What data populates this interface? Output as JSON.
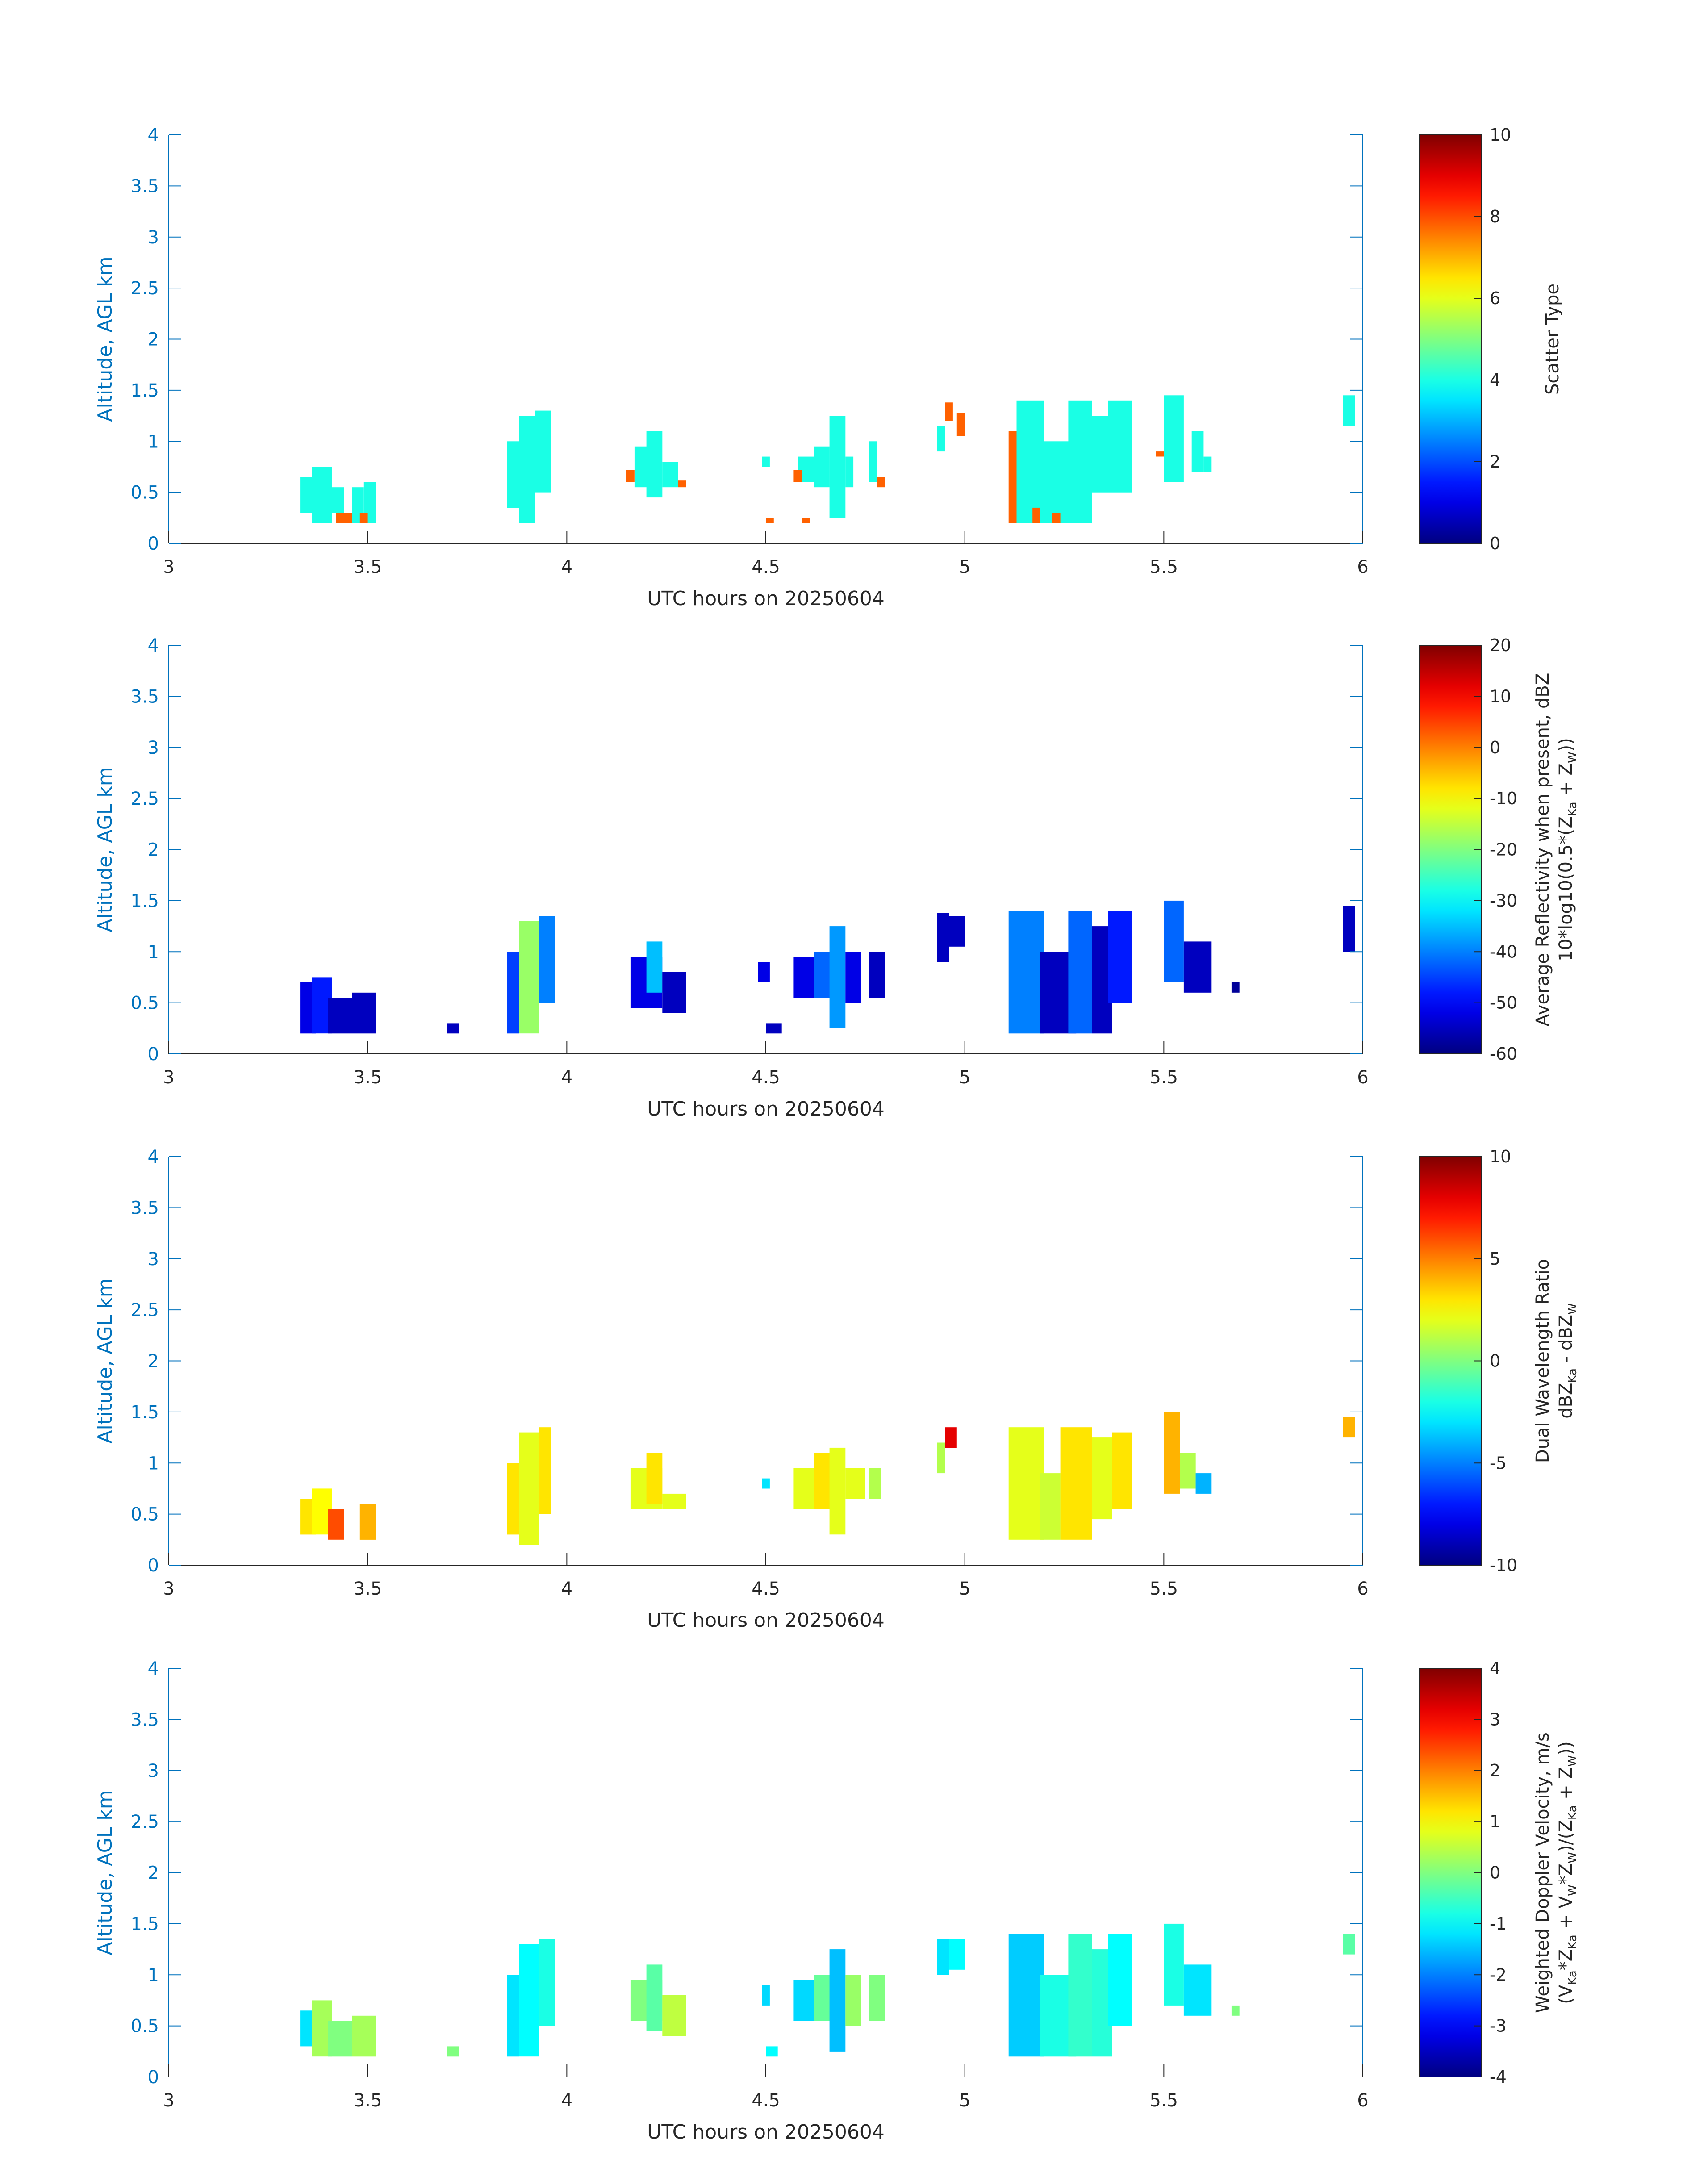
{
  "figure": {
    "date_label": "UTC hours on 20250604",
    "ylabel": "Altitude, AGL km",
    "xlim": [
      3,
      6
    ],
    "ylim": [
      0,
      4
    ],
    "x_ticks": [
      "3",
      "3.5",
      "4",
      "4.5",
      "5",
      "5.5",
      "6"
    ],
    "y_ticks": [
      "0",
      "0.5",
      "1",
      "1.5",
      "2",
      "2.5",
      "3",
      "3.5",
      "4"
    ],
    "axis_color": "#0072BD"
  },
  "chart_data": [
    {
      "type": "heatmap",
      "title": "",
      "xlabel": "UTC hours on 20250604",
      "ylabel": "Altitude, AGL km",
      "xlim": [
        3,
        6
      ],
      "ylim": [
        0,
        4
      ],
      "colorbar": {
        "title_lines": [
          "Scatter Type"
        ],
        "range": [
          0,
          10
        ],
        "ticks": [
          "0",
          "2",
          "4",
          "6",
          "8",
          "10"
        ]
      },
      "cells_note": "approximate patches [x0, x1, y0, y1, value] in data units",
      "patches": [
        [
          3.33,
          3.37,
          0.3,
          0.65,
          4
        ],
        [
          3.36,
          3.41,
          0.2,
          0.75,
          4
        ],
        [
          3.4,
          3.44,
          0.3,
          0.55,
          4
        ],
        [
          3.46,
          3.49,
          0.2,
          0.55,
          4
        ],
        [
          3.49,
          3.52,
          0.2,
          0.6,
          4
        ],
        [
          3.42,
          3.46,
          0.2,
          0.3,
          7.8
        ],
        [
          3.48,
          3.5,
          0.2,
          0.3,
          7.8
        ],
        [
          3.85,
          3.88,
          0.35,
          1.0,
          4
        ],
        [
          3.88,
          3.92,
          0.2,
          1.25,
          4
        ],
        [
          3.92,
          3.96,
          0.5,
          1.3,
          4
        ],
        [
          4.17,
          4.22,
          0.55,
          0.95,
          4
        ],
        [
          4.2,
          4.24,
          0.45,
          1.1,
          4
        ],
        [
          4.24,
          4.28,
          0.55,
          0.8,
          4
        ],
        [
          4.15,
          4.17,
          0.6,
          0.72,
          7.8
        ],
        [
          4.28,
          4.3,
          0.55,
          0.62,
          7.8
        ],
        [
          4.49,
          4.51,
          0.75,
          0.85,
          4
        ],
        [
          4.58,
          4.62,
          0.6,
          0.85,
          4
        ],
        [
          4.62,
          4.66,
          0.55,
          0.95,
          4
        ],
        [
          4.66,
          4.7,
          0.25,
          1.25,
          4
        ],
        [
          4.7,
          4.72,
          0.55,
          0.85,
          4
        ],
        [
          4.76,
          4.78,
          0.6,
          1.0,
          4
        ],
        [
          4.57,
          4.59,
          0.6,
          0.72,
          7.8
        ],
        [
          4.78,
          4.8,
          0.55,
          0.65,
          7.8
        ],
        [
          4.5,
          4.52,
          0.2,
          0.25,
          7.8
        ],
        [
          4.59,
          4.61,
          0.2,
          0.25,
          7.8
        ],
        [
          4.93,
          4.95,
          0.9,
          1.15,
          4
        ],
        [
          4.95,
          4.97,
          1.2,
          1.38,
          7.8
        ],
        [
          4.98,
          5.0,
          1.05,
          1.28,
          7.8
        ],
        [
          5.13,
          5.2,
          0.2,
          1.4,
          4
        ],
        [
          5.2,
          5.28,
          0.2,
          1.0,
          4
        ],
        [
          5.26,
          5.32,
          0.2,
          1.4,
          4
        ],
        [
          5.32,
          5.36,
          0.5,
          1.25,
          4
        ],
        [
          5.36,
          5.42,
          0.5,
          1.4,
          4
        ],
        [
          5.11,
          5.13,
          0.2,
          1.1,
          7.8
        ],
        [
          5.17,
          5.19,
          0.2,
          0.35,
          7.8
        ],
        [
          5.22,
          5.24,
          0.2,
          0.3,
          7.8
        ],
        [
          5.48,
          5.5,
          0.85,
          0.9,
          7.8
        ],
        [
          5.5,
          5.55,
          0.6,
          1.45,
          4
        ],
        [
          5.57,
          5.6,
          0.7,
          1.1,
          4
        ],
        [
          5.6,
          5.62,
          0.7,
          0.85,
          4
        ],
        [
          5.95,
          5.98,
          1.15,
          1.45,
          4
        ]
      ]
    },
    {
      "type": "heatmap",
      "title": "",
      "xlabel": "UTC hours on 20250604",
      "ylabel": "Altitude, AGL km",
      "xlim": [
        3,
        6
      ],
      "ylim": [
        0,
        4
      ],
      "colorbar": {
        "title_lines": [
          "Average Reflectivity when present, dBZ",
          "10*log10(0.5*(Z",
          "Ka",
          " + Z",
          "W",
          "))"
        ],
        "range": [
          -60,
          20
        ],
        "ticks": [
          "-60",
          "-50",
          "-40",
          "-30",
          "-20",
          "-10",
          "0",
          "10",
          "20"
        ]
      },
      "patches": [
        [
          3.33,
          3.37,
          0.2,
          0.7,
          -52
        ],
        [
          3.36,
          3.41,
          0.2,
          0.75,
          -48
        ],
        [
          3.4,
          3.46,
          0.2,
          0.55,
          -55
        ],
        [
          3.46,
          3.52,
          0.2,
          0.6,
          -55
        ],
        [
          3.7,
          3.73,
          0.2,
          0.3,
          -55
        ],
        [
          3.85,
          3.88,
          0.2,
          1.0,
          -45
        ],
        [
          3.88,
          3.93,
          0.2,
          1.3,
          -18
        ],
        [
          3.93,
          3.97,
          0.5,
          1.35,
          -40
        ],
        [
          4.16,
          4.24,
          0.45,
          0.95,
          -52
        ],
        [
          4.2,
          4.24,
          0.6,
          1.1,
          -35
        ],
        [
          4.24,
          4.3,
          0.4,
          0.8,
          -55
        ],
        [
          4.48,
          4.51,
          0.7,
          0.9,
          -52
        ],
        [
          4.5,
          4.54,
          0.2,
          0.3,
          -55
        ],
        [
          4.57,
          4.62,
          0.55,
          0.95,
          -52
        ],
        [
          4.62,
          4.67,
          0.55,
          1.0,
          -42
        ],
        [
          4.66,
          4.7,
          0.25,
          1.25,
          -38
        ],
        [
          4.7,
          4.74,
          0.5,
          1.0,
          -52
        ],
        [
          4.76,
          4.8,
          0.55,
          1.0,
          -55
        ],
        [
          4.93,
          4.96,
          0.9,
          1.38,
          -55
        ],
        [
          4.96,
          5.0,
          1.05,
          1.35,
          -55
        ],
        [
          5.11,
          5.2,
          0.2,
          1.4,
          -40
        ],
        [
          5.19,
          5.28,
          0.2,
          1.0,
          -55
        ],
        [
          5.26,
          5.32,
          0.2,
          1.4,
          -42
        ],
        [
          5.32,
          5.37,
          0.2,
          1.25,
          -55
        ],
        [
          5.36,
          5.42,
          0.5,
          1.4,
          -48
        ],
        [
          5.5,
          5.55,
          0.7,
          1.5,
          -42
        ],
        [
          5.55,
          5.62,
          0.6,
          1.1,
          -55
        ],
        [
          5.67,
          5.69,
          0.6,
          0.7,
          -58
        ],
        [
          5.95,
          5.98,
          1.0,
          1.45,
          -55
        ]
      ]
    },
    {
      "type": "heatmap",
      "title": "",
      "xlabel": "UTC hours on 20250604",
      "ylabel": "Altitude, AGL km",
      "xlim": [
        3,
        6
      ],
      "ylim": [
        0,
        4
      ],
      "colorbar": {
        "title_lines": [
          "Dual Wavelength Ratio",
          "dBZ",
          "Ka",
          " - dBZ",
          "W"
        ],
        "range": [
          -10,
          10
        ],
        "ticks": [
          "-10",
          "-5",
          "0",
          "5",
          "10"
        ]
      },
      "patches": [
        [
          3.33,
          3.37,
          0.3,
          0.65,
          3
        ],
        [
          3.36,
          3.41,
          0.3,
          0.75,
          2.5
        ],
        [
          3.4,
          3.44,
          0.25,
          0.55,
          6
        ],
        [
          3.48,
          3.52,
          0.25,
          0.6,
          4
        ],
        [
          3.85,
          3.88,
          0.3,
          1.0,
          3
        ],
        [
          3.88,
          3.93,
          0.2,
          1.3,
          2
        ],
        [
          3.93,
          3.96,
          0.5,
          1.35,
          3
        ],
        [
          4.16,
          4.24,
          0.55,
          0.95,
          2
        ],
        [
          4.2,
          4.24,
          0.6,
          1.1,
          3
        ],
        [
          4.24,
          4.3,
          0.55,
          0.7,
          2
        ],
        [
          4.49,
          4.51,
          0.75,
          0.85,
          -3
        ],
        [
          4.57,
          4.62,
          0.55,
          0.95,
          2
        ],
        [
          4.62,
          4.67,
          0.55,
          1.1,
          3
        ],
        [
          4.66,
          4.7,
          0.3,
          1.15,
          2
        ],
        [
          4.7,
          4.75,
          0.65,
          0.95,
          2
        ],
        [
          4.76,
          4.79,
          0.65,
          0.95,
          1
        ],
        [
          4.93,
          4.95,
          0.9,
          1.2,
          1
        ],
        [
          4.95,
          4.98,
          1.15,
          1.35,
          8
        ],
        [
          5.11,
          5.2,
          0.25,
          1.35,
          2
        ],
        [
          5.19,
          5.24,
          0.25,
          0.9,
          1.5
        ],
        [
          5.24,
          5.32,
          0.25,
          1.35,
          3
        ],
        [
          5.32,
          5.37,
          0.45,
          1.25,
          2
        ],
        [
          5.37,
          5.42,
          0.55,
          1.3,
          3
        ],
        [
          5.5,
          5.54,
          0.7,
          1.5,
          4
        ],
        [
          5.54,
          5.58,
          0.75,
          1.1,
          1
        ],
        [
          5.58,
          5.62,
          0.7,
          0.9,
          -4
        ],
        [
          5.95,
          5.98,
          1.25,
          1.45,
          4
        ]
      ]
    },
    {
      "type": "heatmap",
      "title": "",
      "xlabel": "UTC hours on 20250604",
      "ylabel": "Altitude, AGL km",
      "xlim": [
        3,
        6
      ],
      "ylim": [
        0,
        4
      ],
      "colorbar": {
        "title_lines": [
          "Weighted Doppler Velocity, m/s",
          "(V",
          "Ka",
          "*Z",
          "Ka",
          " + V",
          "W",
          "*Z",
          "W",
          ")/(Z",
          "Ka",
          " + Z",
          "W",
          "))"
        ],
        "range": [
          -4,
          4
        ],
        "ticks": [
          "-4",
          "-3",
          "-2",
          "-1",
          "0",
          "1",
          "2",
          "3",
          "4"
        ]
      },
      "patches": [
        [
          3.33,
          3.37,
          0.3,
          0.65,
          -1.2
        ],
        [
          3.36,
          3.41,
          0.2,
          0.75,
          0.3
        ],
        [
          3.4,
          3.46,
          0.2,
          0.55,
          0.0
        ],
        [
          3.46,
          3.52,
          0.2,
          0.6,
          0.3
        ],
        [
          3.7,
          3.73,
          0.2,
          0.3,
          0.0
        ],
        [
          3.85,
          3.88,
          0.2,
          1.0,
          -1.2
        ],
        [
          3.88,
          3.93,
          0.2,
          1.3,
          -1.0
        ],
        [
          3.93,
          3.97,
          0.5,
          1.35,
          -0.8
        ],
        [
          4.16,
          4.24,
          0.55,
          0.95,
          0.0
        ],
        [
          4.2,
          4.24,
          0.45,
          1.1,
          -0.3
        ],
        [
          4.24,
          4.3,
          0.4,
          0.8,
          0.5
        ],
        [
          4.49,
          4.51,
          0.7,
          0.9,
          -1.3
        ],
        [
          4.5,
          4.53,
          0.2,
          0.3,
          -1.0
        ],
        [
          4.57,
          4.62,
          0.55,
          0.95,
          -1.3
        ],
        [
          4.62,
          4.67,
          0.55,
          1.0,
          -0.2
        ],
        [
          4.66,
          4.7,
          0.25,
          1.25,
          -1.5
        ],
        [
          4.7,
          4.74,
          0.5,
          1.0,
          0.2
        ],
        [
          4.76,
          4.8,
          0.55,
          1.0,
          0.0
        ],
        [
          4.93,
          4.96,
          1.0,
          1.35,
          -1.2
        ],
        [
          4.96,
          5.0,
          1.05,
          1.35,
          -1.0
        ],
        [
          5.11,
          5.2,
          0.2,
          1.4,
          -1.4
        ],
        [
          5.19,
          5.28,
          0.2,
          1.0,
          -0.8
        ],
        [
          5.26,
          5.32,
          0.2,
          1.4,
          -0.6
        ],
        [
          5.32,
          5.37,
          0.2,
          1.25,
          -0.7
        ],
        [
          5.36,
          5.42,
          0.5,
          1.4,
          -1.0
        ],
        [
          5.5,
          5.55,
          0.7,
          1.5,
          -0.8
        ],
        [
          5.55,
          5.62,
          0.6,
          1.1,
          -1.2
        ],
        [
          5.67,
          5.69,
          0.6,
          0.7,
          0.0
        ],
        [
          5.95,
          5.98,
          1.2,
          1.4,
          -0.3
        ]
      ]
    }
  ]
}
